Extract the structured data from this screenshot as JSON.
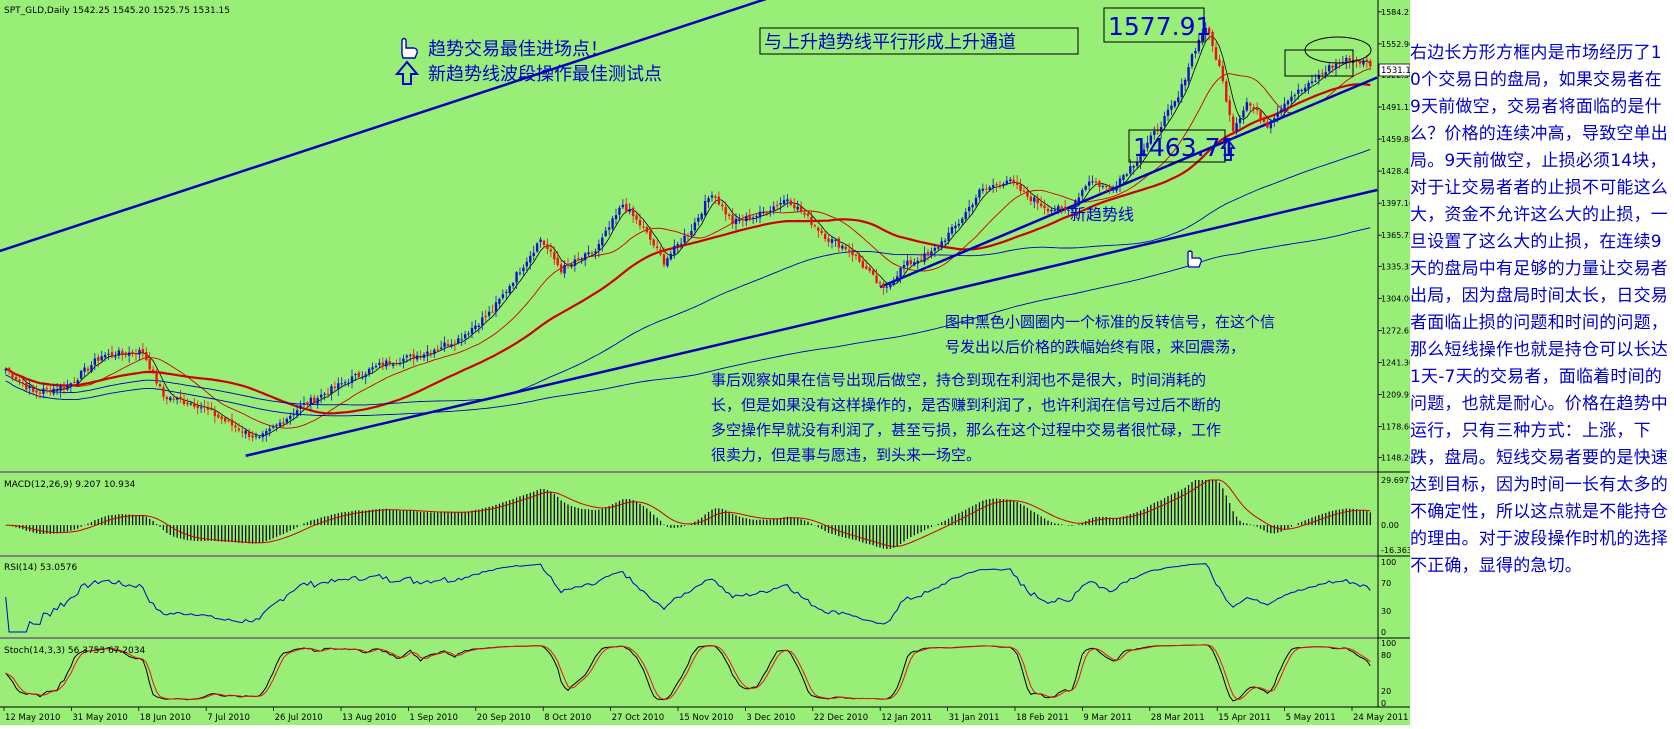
{
  "chart_data": {
    "type": "candlestick",
    "symbol_header": "SPT_GLD,Daily  1542.25 1545.20 1525.75 1531.15",
    "current_price_label": "1531.15",
    "price_ticks": [
      "1584.25",
      "1552.90",
      "1522.50",
      "1491.15",
      "1459.80",
      "1428.45",
      "1397.10",
      "1365.75",
      "1335.35",
      "1304.00",
      "1272.65",
      "1241.30",
      "1209.95",
      "1178.60",
      "1148.20"
    ],
    "price_range": [
      1140,
      1588
    ],
    "date_ticks": [
      "12 May 2010",
      "31 May 2010",
      "18 Jun 2010",
      "7 Jul 2010",
      "26 Jul 2010",
      "13 Aug 2010",
      "1 Sep 2010",
      "20 Sep 2010",
      "8 Oct 2010",
      "27 Oct 2010",
      "15 Nov 2010",
      "3 Dec 2010",
      "22 Dec 2010",
      "12 Jan 2011",
      "31 Jan 2011",
      "18 Feb 2011",
      "9 Mar 2011",
      "28 Mar 2011",
      "15 Apr 2011",
      "5 May 2011",
      "24 May 2011"
    ],
    "close_keypoints": [
      [
        0,
        1235
      ],
      [
        8,
        1212
      ],
      [
        18,
        1218
      ],
      [
        28,
        1248
      ],
      [
        40,
        1252
      ],
      [
        46,
        1208
      ],
      [
        56,
        1200
      ],
      [
        66,
        1180
      ],
      [
        74,
        1166
      ],
      [
        86,
        1198
      ],
      [
        100,
        1224
      ],
      [
        110,
        1240
      ],
      [
        120,
        1248
      ],
      [
        132,
        1264
      ],
      [
        142,
        1292
      ],
      [
        150,
        1332
      ],
      [
        156,
        1362
      ],
      [
        162,
        1332
      ],
      [
        172,
        1350
      ],
      [
        180,
        1396
      ],
      [
        186,
        1372
      ],
      [
        192,
        1340
      ],
      [
        200,
        1372
      ],
      [
        206,
        1408
      ],
      [
        212,
        1378
      ],
      [
        220,
        1386
      ],
      [
        228,
        1402
      ],
      [
        234,
        1382
      ],
      [
        240,
        1362
      ],
      [
        246,
        1352
      ],
      [
        252,
        1328
      ],
      [
        256,
        1312
      ],
      [
        262,
        1336
      ],
      [
        270,
        1348
      ],
      [
        278,
        1378
      ],
      [
        284,
        1408
      ],
      [
        292,
        1420
      ],
      [
        298,
        1404
      ],
      [
        304,
        1392
      ],
      [
        310,
        1390
      ],
      [
        316,
        1420
      ],
      [
        322,
        1410
      ],
      [
        330,
        1440
      ],
      [
        336,
        1470
      ],
      [
        342,
        1500
      ],
      [
        346,
        1542
      ],
      [
        350,
        1570
      ],
      [
        354,
        1530
      ],
      [
        358,
        1470
      ],
      [
        362,
        1496
      ],
      [
        368,
        1474
      ],
      [
        374,
        1500
      ],
      [
        380,
        1512
      ],
      [
        386,
        1530
      ],
      [
        392,
        1538
      ],
      [
        398,
        1533
      ]
    ],
    "indicators": {
      "macd": {
        "label": "MACD(12,26,9) 9.207 10.934",
        "ticks": [
          "29.697",
          "0.00",
          "-16.363"
        ]
      },
      "rsi": {
        "label": "RSI(14) 53.0576",
        "ticks": [
          "100",
          "70",
          "30",
          "0"
        ]
      },
      "stoch": {
        "label": "Stoch(14,3,3) 56.3753 67.2034",
        "ticks": [
          "100",
          "80",
          "20",
          "0"
        ]
      }
    },
    "annotations": {
      "high_price": "1577.91",
      "low_price": "1463.71",
      "best_entry": "趋势交易最佳进场点！",
      "best_test": "新趋势线波段操作最佳测试点",
      "channel_note": "与上升趋势线平行形成上升通道",
      "new_trend": "新趋势线",
      "reversal_note_1": "图中黑色小圆圈内一个标准的反转信号，在这个信",
      "reversal_note_2": "号发出以后价格的跌幅始终有限，来回震荡，",
      "hindsight_1": "事后观察如果在信号出现后做空，持仓到现在利润也不是很大，时间消耗的",
      "hindsight_2": "长，但是如果没有这样操作的，是否赚到利润了，也许利润在信号过后不断的",
      "hindsight_3": "多空操作早就没有利润了，甚至亏损，那么在这个过程中交易者很忙碌，工作",
      "hindsight_4": "很卖力，但是事与愿违，到头来一场空。"
    },
    "colors": {
      "background": "#99ee77",
      "bull": "#1010cc",
      "bear": "#ee1010",
      "trendline": "#0000bb",
      "ma_red": "#cc0000",
      "macd_signal": "#cc0000",
      "oscillator": "#0000cc",
      "annotation_text": "#0000cc"
    }
  },
  "side_note": "右边长方形方框内是市场经历了10个交易日的盘局，如果交易者在9天前做空，交易者将面临的是什么？价格的连续冲高，导致空单出局。9天前做空，止损必须14块，对于让交易者者的止损不可能这么大，资金不允许这么大的止损，一旦设置了这么大的止损，在连续9天的盘局中有足够的力量让交易者出局，因为盘局时间太长，日交易者面临止损的问题和时间的问题，那么短线操作也就是持仓可以长达1天-7天的交易者，面临着时间的问题，也就是耐心。价格在趋势中运行，只有三种方式：上涨，下跌，盘局。短线交易者要的是快速达到目标，因为时间一长有太多的不确定性，所以这点就是不能持仓的理由。对于波段操作时机的选择不正确，显得的急切。"
}
